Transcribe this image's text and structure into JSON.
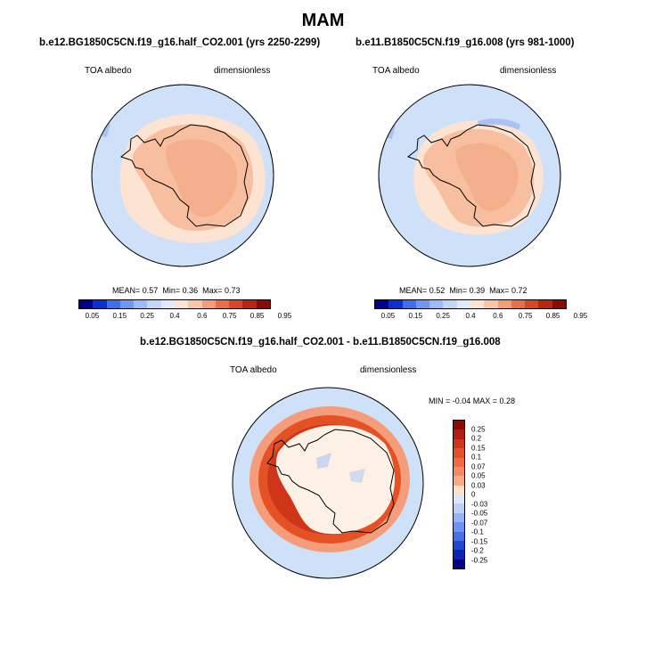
{
  "title": "MAM",
  "panels": [
    {
      "title": "b.e12.BG1850C5CN.f19_g16.half_CO2.001 (yrs 2250-2299)",
      "variable": "TOA albedo",
      "units": "dimensionless",
      "mean_label": "MEAN=",
      "mean": "0.57",
      "min_label": "Min=",
      "min": "0.36",
      "max_label": "Max=",
      "max": "0.73"
    },
    {
      "title": "b.e11.B1850C5CN.f19_g16.008 (yrs 981-1000)",
      "variable": "TOA albedo",
      "units": "dimensionless",
      "mean_label": "MEAN=",
      "mean": "0.52",
      "min_label": "Min=",
      "min": "0.39",
      "max_label": "Max=",
      "max": "0.72"
    }
  ],
  "diff_panel": {
    "title": "b.e12.BG1850C5CN.f19_g16.half_CO2.001 - b.e11.B1850C5CN.f19_g16.008",
    "variable": "TOA albedo",
    "units": "dimensionless",
    "minmax": "MIN =  -0.04 MAX =   0.28"
  },
  "colorbar_abs": {
    "ticks": [
      "0.05",
      "0.15",
      "0.25",
      "0.4",
      "0.6",
      "0.75",
      "0.85",
      "0.95"
    ],
    "colors": [
      "#00008a",
      "#0a2fd9",
      "#3e6fee",
      "#6f98f3",
      "#9cbcf6",
      "#c3d6f8",
      "#deebfa",
      "#fde3d2",
      "#fbc4a7",
      "#f59c7a",
      "#ec6d4c",
      "#d9472b",
      "#bb2514",
      "#8a0b03"
    ]
  },
  "colorbar_diff": {
    "labels": [
      "0.25",
      "0.2",
      "0.15",
      "0.1",
      "0.07",
      "0.05",
      "0.03",
      "0",
      "-0.03",
      "-0.05",
      "-0.07",
      "-0.1",
      "-0.15",
      "-0.2",
      "-0.25"
    ],
    "colors": [
      "#8a0b03",
      "#b11e0f",
      "#cf3519",
      "#e45125",
      "#ef6b3e",
      "#f5895f",
      "#f9ab86",
      "#fde1cd",
      "#dce8fa",
      "#bcd0f7",
      "#96b3f4",
      "#6e92f1",
      "#4670ea",
      "#1f47d8",
      "#0a25b3",
      "#00008a"
    ]
  },
  "map_colors": {
    "ocean": "#cfe0f9",
    "sea_ice": "#fde3d2",
    "ice_sheet": "#f7bfa0",
    "ice_sheet_interior": "#f4b08d",
    "bluish": "#a9c4f4",
    "diff_base": "#fdf1e6",
    "diff_ring_outer": "#f59c7a",
    "diff_ring_mid": "#e45125",
    "diff_ring_inner": "#cf3519",
    "land_line": "#000000"
  }
}
